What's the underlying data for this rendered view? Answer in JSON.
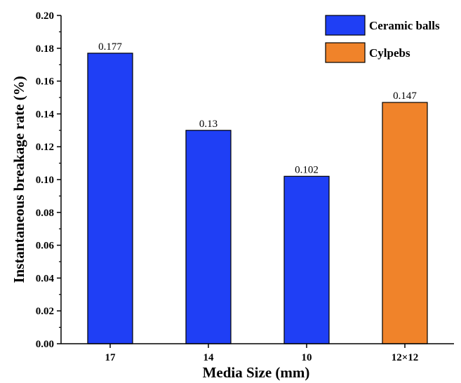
{
  "chart_data": {
    "type": "bar",
    "categories": [
      "17",
      "14",
      "10",
      "12×12"
    ],
    "values": [
      0.177,
      0.13,
      0.102,
      0.147
    ],
    "data_labels": [
      "0.177",
      "0.13",
      "0.102",
      "0.147"
    ],
    "bar_series": [
      "Ceramic balls",
      "Ceramic balls",
      "Ceramic balls",
      "Cylpebs"
    ],
    "series": [
      {
        "name": "Ceramic balls",
        "color": "#1f3ff5"
      },
      {
        "name": "Cylpebs",
        "color": "#f0832a"
      }
    ],
    "xlabel": "Media Size (mm)",
    "ylabel": "Instantaneous breakage rate (%)",
    "ylim": [
      0,
      0.2
    ],
    "yticks": [
      "0.00",
      "0.02",
      "0.04",
      "0.06",
      "0.08",
      "0.10",
      "0.12",
      "0.14",
      "0.16",
      "0.18",
      "0.20"
    ],
    "grid": false,
    "legend_position": "top-right"
  }
}
